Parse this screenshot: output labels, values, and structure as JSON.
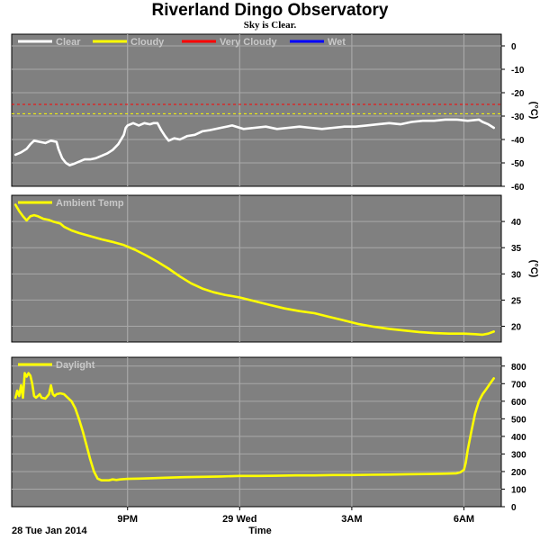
{
  "header": {
    "title": "Riverland Dingo Observatory",
    "subtitle": "Sky is Clear."
  },
  "footer": {
    "date_label": "28 Tue Jan 2014",
    "x_title": "Time"
  },
  "colors": {
    "plot_bg": "#808080",
    "grid": "#a8a8a8",
    "clear": "#ffffff",
    "cloudy": "#ffff00",
    "very_cloudy": "#ff0000",
    "wet": "#0000ff",
    "temp": "#ffff00",
    "daylight": "#ffff00"
  },
  "chart_data": [
    {
      "type": "line",
      "panel": "sky",
      "xlim": [
        17.9,
        31.0
      ],
      "x_ticks": [
        {
          "x": 21,
          "label": "9PM"
        },
        {
          "x": 24,
          "label": "29 Wed"
        },
        {
          "x": 27,
          "label": "3AM"
        },
        {
          "x": 30,
          "label": "6AM"
        }
      ],
      "ylim": [
        -60,
        5
      ],
      "y_ticks": [
        0,
        -10,
        -20,
        -30,
        -40,
        -50,
        -60
      ],
      "y_tick_labels": [
        "0",
        "-10",
        "-20",
        "-30",
        "-40",
        "-50",
        "-60"
      ],
      "ylabel": "(°C)",
      "grid": true,
      "legend": {
        "position": "top-left",
        "entries": [
          {
            "label": "Clear",
            "color": "#ffffff"
          },
          {
            "label": "Cloudy",
            "color": "#ffff00"
          },
          {
            "label": "Very Cloudy",
            "color": "#ff0000"
          },
          {
            "label": "Wet",
            "color": "#0000ff"
          }
        ]
      },
      "thresholds": [
        {
          "name": "Very Cloudy",
          "value": -25,
          "color": "#ff0000"
        },
        {
          "name": "Cloudy",
          "value": -29,
          "color": "#ffff00"
        }
      ],
      "series": [
        {
          "name": "Clear",
          "color": "#ffffff",
          "x": [
            18.0,
            18.15,
            18.3,
            18.4,
            18.5,
            18.65,
            18.8,
            18.95,
            19.1,
            19.15,
            19.25,
            19.35,
            19.45,
            19.55,
            19.7,
            19.85,
            20.0,
            20.15,
            20.3,
            20.45,
            20.6,
            20.75,
            20.9,
            20.95,
            21.0,
            21.15,
            21.3,
            21.45,
            21.6,
            21.7,
            21.8,
            21.9,
            22.0,
            22.1,
            22.25,
            22.4,
            22.6,
            22.8,
            23.0,
            23.2,
            23.5,
            23.8,
            24.1,
            24.4,
            24.7,
            25.0,
            25.3,
            25.6,
            25.9,
            26.2,
            26.5,
            26.8,
            27.1,
            27.4,
            27.7,
            28.0,
            28.3,
            28.6,
            28.9,
            29.2,
            29.5,
            29.8,
            30.1,
            30.4,
            30.5,
            30.65,
            30.8
          ],
          "y": [
            -46.5,
            -45.5,
            -44,
            -42,
            -40.5,
            -41,
            -41.5,
            -40.5,
            -41,
            -44,
            -48,
            -50,
            -51,
            -50.5,
            -49.5,
            -48.5,
            -48.5,
            -48,
            -47,
            -46,
            -44.5,
            -42,
            -38,
            -35,
            -34,
            -33,
            -34,
            -33,
            -33.5,
            -33,
            -33,
            -36,
            -38.5,
            -40.5,
            -39.5,
            -40,
            -38.5,
            -38,
            -36.5,
            -36,
            -35,
            -34,
            -35.5,
            -35,
            -34.5,
            -35.5,
            -35,
            -34.5,
            -35,
            -35.5,
            -35,
            -34.5,
            -34.5,
            -34,
            -33.5,
            -33,
            -33.5,
            -32.5,
            -32,
            -32,
            -31.5,
            -31.5,
            -32,
            -31.5,
            -32.5,
            -33.5,
            -35
          ]
        }
      ]
    },
    {
      "type": "line",
      "panel": "ambient",
      "xlim": [
        17.9,
        31.0
      ],
      "x_ticks": [
        {
          "x": 21,
          "label": "9PM"
        },
        {
          "x": 24,
          "label": "29 Wed"
        },
        {
          "x": 27,
          "label": "3AM"
        },
        {
          "x": 30,
          "label": "6AM"
        }
      ],
      "ylim": [
        17,
        45
      ],
      "y_ticks": [
        40,
        35,
        30,
        25,
        20
      ],
      "y_tick_labels": [
        "40",
        "35",
        "30",
        "25",
        "20"
      ],
      "ylabel": "(°C)",
      "grid": true,
      "legend": {
        "position": "top-left",
        "entries": [
          {
            "label": "Ambient Temp",
            "color": "#ffff00"
          }
        ]
      },
      "series": [
        {
          "name": "Ambient Temp",
          "color": "#ffff00",
          "x": [
            18.0,
            18.1,
            18.2,
            18.3,
            18.4,
            18.5,
            18.6,
            18.75,
            18.9,
            19.0,
            19.1,
            19.2,
            19.3,
            19.5,
            19.7,
            20.0,
            20.3,
            20.6,
            20.9,
            21.2,
            21.5,
            21.8,
            22.1,
            22.4,
            22.7,
            23.0,
            23.3,
            23.6,
            24.0,
            24.4,
            24.8,
            25.2,
            25.6,
            26.0,
            26.4,
            26.8,
            27.2,
            27.6,
            28.0,
            28.4,
            28.8,
            29.2,
            29.6,
            30.0,
            30.3,
            30.5,
            30.65,
            30.8
          ],
          "y": [
            43.2,
            42,
            41,
            40.2,
            41,
            41.2,
            41,
            40.5,
            40.3,
            40,
            39.8,
            39.6,
            39,
            38.3,
            37.8,
            37.2,
            36.6,
            36.1,
            35.5,
            34.6,
            33.5,
            32.3,
            31,
            29.5,
            28.2,
            27.2,
            26.5,
            26,
            25.5,
            24.8,
            24.1,
            23.4,
            22.9,
            22.5,
            21.8,
            21.1,
            20.4,
            19.9,
            19.5,
            19.2,
            18.9,
            18.7,
            18.6,
            18.6,
            18.5,
            18.4,
            18.6,
            19
          ]
        }
      ]
    },
    {
      "type": "line",
      "panel": "daylight",
      "xlim": [
        17.9,
        31.0
      ],
      "x_ticks": [
        {
          "x": 21,
          "label": "9PM"
        },
        {
          "x": 24,
          "label": "29 Wed"
        },
        {
          "x": 27,
          "label": "3AM"
        },
        {
          "x": 30,
          "label": "6AM"
        }
      ],
      "ylim": [
        0,
        850
      ],
      "y_ticks": [
        800,
        700,
        600,
        500,
        400,
        300,
        200,
        100,
        0
      ],
      "y_tick_labels": [
        "800",
        "700",
        "600",
        "500",
        "400",
        "300",
        "200",
        "100",
        "0"
      ],
      "grid": true,
      "legend": {
        "position": "top-left",
        "entries": [
          {
            "label": "Daylight",
            "color": "#ffff00"
          }
        ]
      },
      "series": [
        {
          "name": "Daylight",
          "color": "#ffff00",
          "x": [
            18.0,
            18.05,
            18.1,
            18.15,
            18.2,
            18.25,
            18.3,
            18.35,
            18.4,
            18.45,
            18.5,
            18.55,
            18.6,
            18.65,
            18.7,
            18.8,
            18.9,
            18.95,
            19.0,
            19.05,
            19.1,
            19.2,
            19.3,
            19.4,
            19.5,
            19.6,
            19.7,
            19.8,
            19.9,
            20.0,
            20.1,
            20.2,
            20.3,
            20.4,
            20.5,
            20.6,
            20.7,
            20.8,
            21.0,
            21.3,
            21.6,
            22.0,
            22.5,
            23.0,
            23.5,
            24.0,
            24.5,
            25.0,
            25.5,
            26.0,
            26.5,
            27.0,
            27.5,
            28.0,
            28.5,
            29.0,
            29.5,
            29.8,
            29.9,
            30.0,
            30.05,
            30.1,
            30.2,
            30.3,
            30.4,
            30.5,
            30.6,
            30.7,
            30.8
          ],
          "y": [
            620,
            660,
            630,
            690,
            620,
            760,
            740,
            760,
            745,
            700,
            630,
            620,
            630,
            640,
            620,
            615,
            640,
            690,
            640,
            630,
            640,
            645,
            640,
            620,
            600,
            560,
            500,
            430,
            350,
            270,
            200,
            160,
            150,
            150,
            150,
            155,
            152,
            155,
            158,
            160,
            162,
            165,
            168,
            170,
            172,
            175,
            175,
            176,
            178,
            178,
            180,
            180,
            182,
            183,
            185,
            186,
            188,
            190,
            195,
            210,
            250,
            320,
            430,
            530,
            600,
            640,
            670,
            700,
            730
          ]
        }
      ]
    }
  ]
}
